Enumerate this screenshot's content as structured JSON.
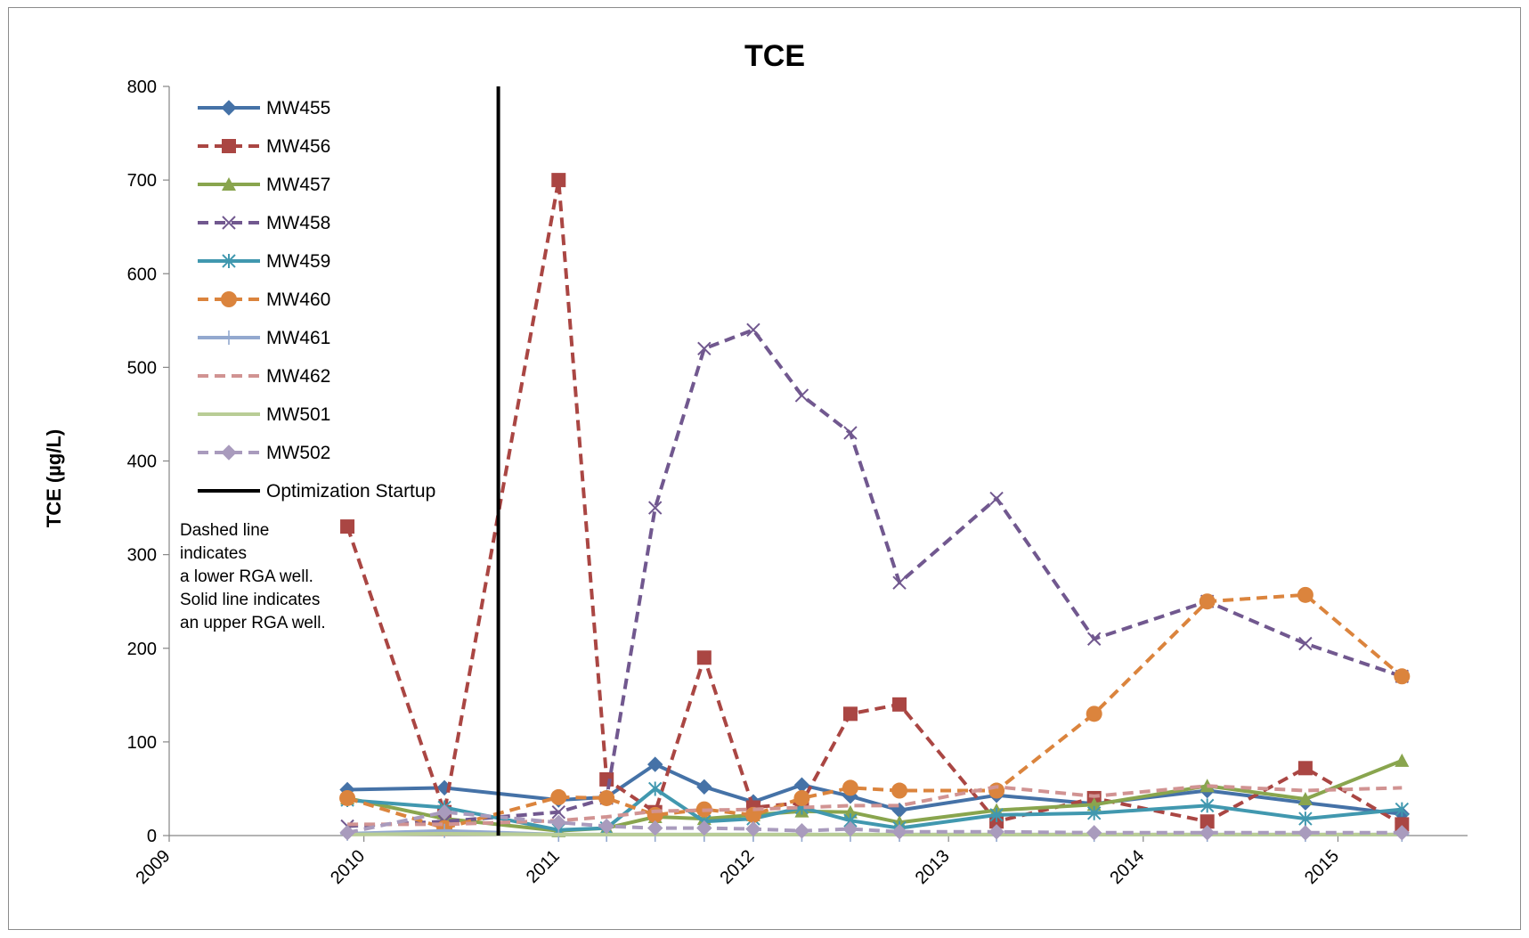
{
  "chart_data": {
    "type": "line",
    "title": "TCE",
    "xlabel": "",
    "ylabel": "TCE (µg/L)",
    "x_axis": {
      "type": "date",
      "min": "2009-01-01",
      "max": "2015-09-01",
      "tick_labels": [
        "2009",
        "2010",
        "2011",
        "2012",
        "2013",
        "2014",
        "2015"
      ]
    },
    "ylim": [
      0,
      800
    ],
    "y_ticks": [
      0,
      100,
      200,
      300,
      400,
      500,
      600,
      700,
      800
    ],
    "grid": false,
    "legend_position": "top-left",
    "vertical_line": {
      "name": "Optimization Startup",
      "date": "2010-09-10",
      "color": "#000000",
      "style": "solid"
    },
    "annotation": [
      "Dashed line",
      "indicates",
      "a lower RGA well.",
      "Solid line indicates",
      "an upper RGA well."
    ],
    "series": [
      {
        "name": "MW455",
        "color": "#4572a7",
        "dash": false,
        "marker": "diamond",
        "x": [
          "2009-12-01",
          "2010-06-01",
          "2011-01-01",
          "2011-04-01",
          "2011-07-01",
          "2011-10-01",
          "2012-01-01",
          "2012-04-01",
          "2012-07-01",
          "2012-10-01",
          "2013-04-01",
          "2013-10-01",
          "2014-05-01",
          "2014-11-01",
          "2015-05-01"
        ],
        "y": [
          49,
          51,
          38,
          41,
          76,
          52,
          36,
          54,
          42,
          27,
          43,
          34,
          48,
          35,
          23
        ]
      },
      {
        "name": "MW456",
        "color": "#aa4643",
        "dash": true,
        "marker": "square",
        "x": [
          "2009-12-01",
          "2010-06-01",
          "2011-01-01",
          "2011-04-01",
          "2011-07-01",
          "2011-10-01",
          "2012-01-01",
          "2012-04-01",
          "2012-07-01",
          "2012-10-01",
          "2013-04-01",
          "2013-10-01",
          "2014-05-01",
          "2014-11-01",
          "2015-05-01"
        ],
        "y": [
          330,
          25,
          700,
          60,
          25,
          190,
          30,
          35,
          130,
          140,
          15,
          40,
          15,
          72,
          12
        ]
      },
      {
        "name": "MW457",
        "color": "#89a54e",
        "dash": false,
        "marker": "triangle",
        "x": [
          "2009-12-01",
          "2010-06-01",
          "2011-01-01",
          "2011-04-01",
          "2011-07-01",
          "2011-10-01",
          "2012-01-01",
          "2012-04-01",
          "2012-07-01",
          "2012-10-01",
          "2013-04-01",
          "2013-10-01",
          "2014-05-01",
          "2014-11-01",
          "2015-05-01"
        ],
        "y": [
          40,
          18,
          5,
          8,
          20,
          18,
          22,
          26,
          25,
          14,
          27,
          33,
          53,
          39,
          80
        ]
      },
      {
        "name": "MW458",
        "color": "#71588f",
        "dash": true,
        "marker": "x",
        "x": [
          "2009-12-01",
          "2010-06-01",
          "2011-01-01",
          "2011-04-01",
          "2011-07-01",
          "2011-10-01",
          "2012-01-01",
          "2012-04-01",
          "2012-07-01",
          "2012-10-01",
          "2013-04-01",
          "2013-10-01",
          "2014-05-01",
          "2014-11-01",
          "2015-05-01"
        ],
        "y": [
          10,
          15,
          25,
          40,
          350,
          520,
          540,
          470,
          430,
          270,
          360,
          210,
          250,
          205,
          170
        ]
      },
      {
        "name": "MW459",
        "color": "#4198af",
        "dash": false,
        "marker": "asterisk",
        "x": [
          "2009-12-01",
          "2010-06-01",
          "2011-01-01",
          "2011-04-01",
          "2011-07-01",
          "2011-10-01",
          "2012-01-01",
          "2012-04-01",
          "2012-07-01",
          "2012-10-01",
          "2013-04-01",
          "2013-10-01",
          "2014-05-01",
          "2014-11-01",
          "2015-05-01"
        ],
        "y": [
          38,
          30,
          6,
          8,
          50,
          15,
          18,
          30,
          16,
          8,
          22,
          24,
          32,
          18,
          28
        ]
      },
      {
        "name": "MW460",
        "color": "#db843d",
        "dash": true,
        "marker": "circle",
        "x": [
          "2009-12-01",
          "2010-06-01",
          "2011-01-01",
          "2011-04-01",
          "2011-07-01",
          "2011-10-01",
          "2012-01-01",
          "2012-04-01",
          "2012-07-01",
          "2012-10-01",
          "2013-04-01",
          "2013-10-01",
          "2014-05-01",
          "2014-11-01",
          "2015-05-01"
        ],
        "y": [
          40,
          8,
          41,
          40,
          22,
          28,
          22,
          40,
          51,
          48,
          48,
          130,
          250,
          257,
          170
        ]
      },
      {
        "name": "MW461",
        "color": "#93a9cf",
        "dash": false,
        "marker": "plus",
        "x": [
          "2009-12-01",
          "2010-06-01",
          "2011-01-01",
          "2011-04-01",
          "2011-07-01",
          "2011-10-01",
          "2012-01-01",
          "2012-04-01",
          "2012-07-01",
          "2012-10-01",
          "2013-04-01",
          "2013-10-01",
          "2014-05-01",
          "2014-11-01",
          "2015-05-01"
        ],
        "y": [
          2,
          5,
          1,
          1,
          1,
          1,
          1,
          1,
          1,
          1,
          1,
          1,
          1,
          1,
          1
        ]
      },
      {
        "name": "MW462",
        "color": "#d19392",
        "dash": true,
        "marker": "none",
        "x": [
          "2009-12-01",
          "2010-06-01",
          "2011-01-01",
          "2011-04-01",
          "2011-07-01",
          "2011-10-01",
          "2012-01-01",
          "2012-04-01",
          "2012-07-01",
          "2012-10-01",
          "2013-04-01",
          "2013-10-01",
          "2014-05-01",
          "2014-11-01",
          "2015-05-01"
        ],
        "y": [
          12,
          12,
          16,
          20,
          26,
          27,
          28,
          30,
          32,
          32,
          52,
          42,
          53,
          48,
          51
        ]
      },
      {
        "name": "MW501",
        "color": "#b9cd96",
        "dash": false,
        "marker": "none",
        "x": [
          "2009-12-01",
          "2010-06-01",
          "2011-01-01",
          "2011-04-01",
          "2011-07-01",
          "2011-10-01",
          "2012-01-01",
          "2012-04-01",
          "2012-07-01",
          "2012-10-01",
          "2013-04-01",
          "2013-10-01",
          "2014-05-01",
          "2014-11-01",
          "2015-05-01"
        ],
        "y": [
          1,
          2,
          1,
          1,
          1,
          1,
          1,
          1,
          1,
          1,
          1,
          1,
          1,
          1,
          1
        ]
      },
      {
        "name": "MW502",
        "color": "#a99bbd",
        "dash": true,
        "marker": "diamond",
        "x": [
          "2009-12-01",
          "2010-06-01",
          "2011-01-01",
          "2011-04-01",
          "2011-07-01",
          "2011-10-01",
          "2012-01-01",
          "2012-04-01",
          "2012-07-01",
          "2012-10-01",
          "2013-04-01",
          "2013-10-01",
          "2014-05-01",
          "2014-11-01",
          "2015-05-01"
        ],
        "y": [
          3,
          25,
          14,
          10,
          8,
          8,
          7,
          5,
          7,
          4,
          4,
          3,
          3,
          3,
          3
        ]
      }
    ]
  }
}
